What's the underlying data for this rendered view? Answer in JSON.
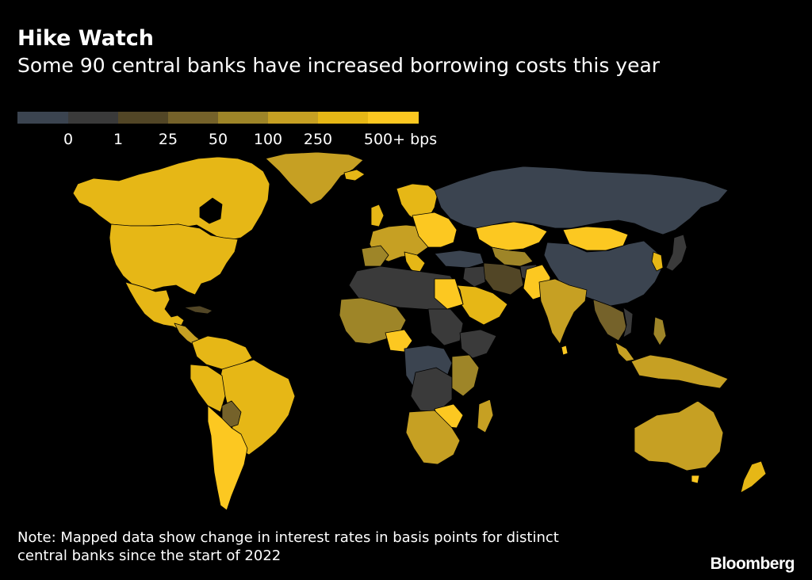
{
  "header": {
    "title": "Hike Watch",
    "subtitle": "Some 90 central banks have increased borrowing costs this year"
  },
  "legend": {
    "colors": [
      "#3b4450",
      "#3a3a3a",
      "#524626",
      "#75622a",
      "#9e8528",
      "#c6a023",
      "#e6b716",
      "#fcc821"
    ],
    "labels": [
      "0",
      "1",
      "25",
      "50",
      "100",
      "250",
      "500+ bps"
    ]
  },
  "map": {
    "no_data_color": "#000000",
    "border_color": "#000000"
  },
  "footer": {
    "note_line1": "Note: Mapped data show change in interest rates in basis points for distinct",
    "note_line2": "central banks since the start of 2022",
    "brand": "Bloomberg"
  }
}
